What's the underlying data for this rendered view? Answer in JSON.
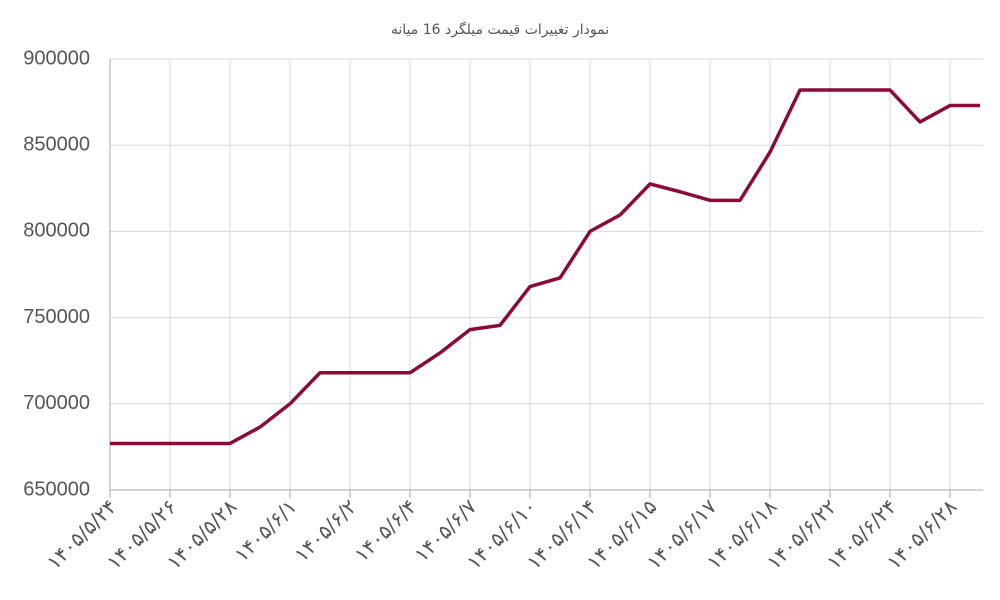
{
  "chart_data": {
    "type": "line",
    "title": "نمودار تغییرات قیمت میلگرد 16 میانه",
    "categories": [
      "۱۴۰۵/۵/۲۴",
      null,
      "۱۴۰۵/۵/۲۶",
      null,
      "۱۴۰۵/۵/۲۸",
      null,
      "۱۴۰۵/۶/۱",
      null,
      "۱۴۰۵/۶/۲",
      null,
      "۱۴۰۵/۶/۴",
      null,
      "۱۴۰۵/۶/۷",
      null,
      "۱۴۰۵/۶/۱۰",
      null,
      "۱۴۰۵/۶/۱۴",
      null,
      "۱۴۰۵/۶/۱۵",
      null,
      "۱۴۰۵/۶/۱۷",
      null,
      "۱۴۰۵/۶/۱۸",
      null,
      "۱۴۰۵/۶/۲۲",
      null,
      "۱۴۰۵/۶/۲۴",
      null,
      "۱۴۰۵/۶/۲۸",
      null
    ],
    "series": [
      {
        "color": "#8b0a3a",
        "values": [
          677000,
          677000,
          677000,
          677000,
          677000,
          686500,
          700000,
          718000,
          718000,
          718000,
          718000,
          729500,
          743000,
          745500,
          768000,
          773000,
          800000,
          809500,
          827500,
          823000,
          818000,
          818000,
          846000,
          882000,
          882000,
          882000,
          882000,
          863500,
          873000,
          873000
        ]
      }
    ],
    "ylim": [
      650000,
      900000
    ],
    "yticks": [
      650000,
      700000,
      750000,
      800000,
      850000,
      900000
    ],
    "grid": true
  }
}
